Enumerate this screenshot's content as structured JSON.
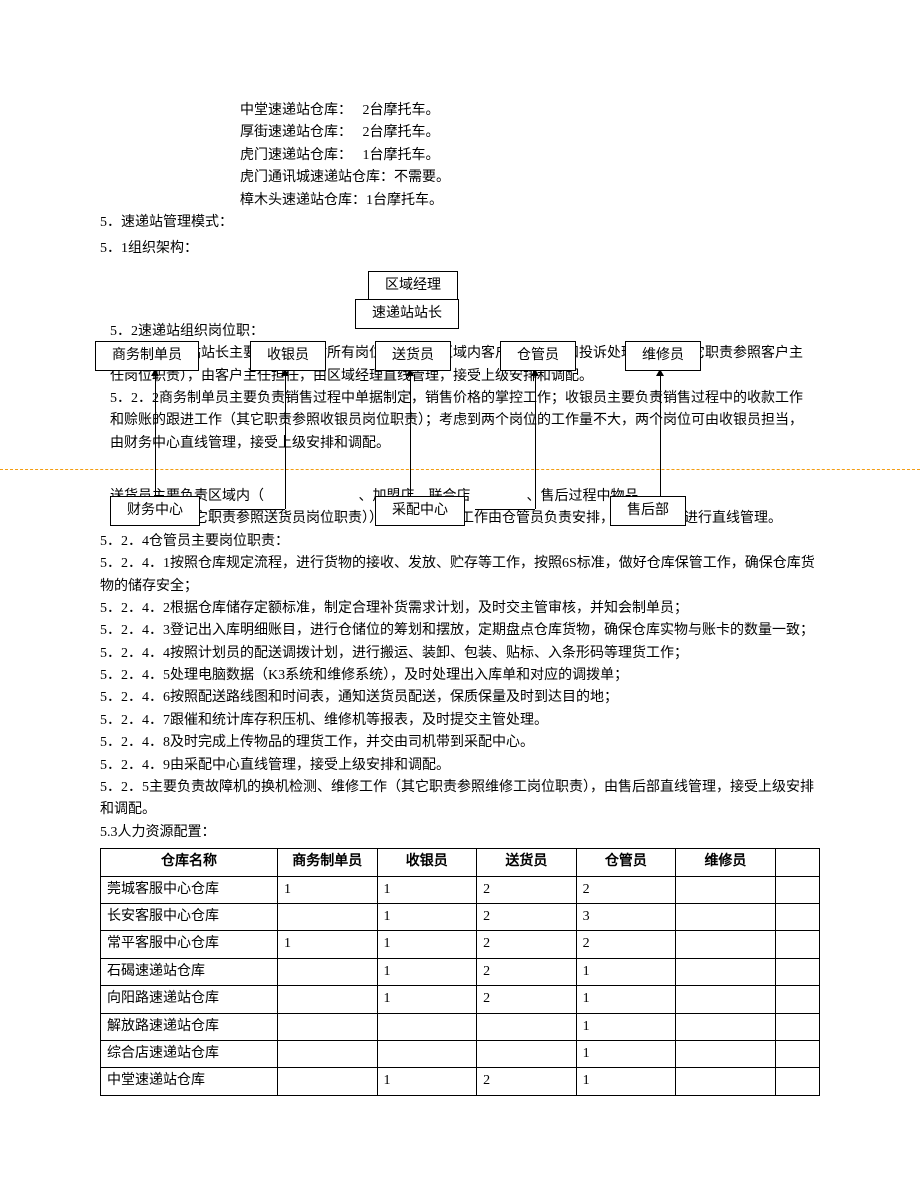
{
  "warehouse_list": [
    {
      "name": "中堂速递站仓库：",
      "qty": "2台摩托车。"
    },
    {
      "name": "厚街速递站仓库：",
      "qty": "2台摩托车。"
    },
    {
      "name": "虎门速递站仓库：",
      "qty": "1台摩托车。"
    },
    {
      "name": "虎门通讯城速递站仓库：不需要。",
      "qty": ""
    },
    {
      "name": "樟木头速递站仓库：1台摩托车。",
      "qty": ""
    }
  ],
  "sec5_title": "5．速递站管理模式：",
  "sec51_title": "5．1组织架构：",
  "org": {
    "manager": "区域经理",
    "station_head": "速递站站长",
    "roles": [
      "商务制单员",
      "收银员",
      "送货员",
      "仓管员",
      "维修员"
    ],
    "depts": [
      "财务中心",
      "采配中心",
      "售后部"
    ]
  },
  "sec52_title": "5．2速递站组织岗位职：",
  "p521": "5．2．1速递站站长主要负责速递站所有岗位的管理、区域内客户维护工作和投诉处理工作（其它职责参照客户主任岗位职责），由客户主任担任，由区域经理直线管理，接受上级安排和调配。",
  "p522": "5．2．2商务制单员主要负责销售过程中单据制定，销售价格的掌控工作；收银员主要负责销售过程中的收款工作和赊账的跟进工作（其它职责参照收银员岗位职责）；考虑到两个岗位的工作量不大，两个岗位可由收银员担当，由财务中心直线管理，接受上级安排和调配。",
  "p523a": "送货员主要负责区域内（",
  "p523b": "、加盟店、联合店",
  "p523c": "、售后过程中物品",
  "p523d": "送递工作（其它职责参照送货员岗位职责）），日常的配送工作由仓管员负责安排，由采配中心进行直线管理。",
  "p524": "5．2．4仓管员主要岗位职责：",
  "p5241": "5．2．4．1按照仓库规定流程，进行货物的接收、发放、贮存等工作，按照6S标准，做好仓库保管工作，确保仓库货物的储存安全；",
  "p5242": "5．2．4．2根据仓库储存定额标准，制定合理补货需求计划，及时交主管审核，并知会制单员；",
  "p5243": "5．2．4．3登记出入库明细账目，进行仓储位的筹划和摆放，定期盘点仓库货物，确保仓库实物与账卡的数量一致；",
  "p5244": "5．2．4．4按照计划员的配送调拨计划，进行搬运、装卸、包装、贴标、入条形码等理货工作；",
  "p5245": "5．2．4．5处理电脑数据（K3系统和维修系统），及时处理出入库单和对应的调拨单；",
  "p5246": "5．2．4．6按照配送路线图和时间表，通知送货员配送，保质保量及时到达目的地；",
  "p5247": "5．2．4．7跟催和统计库存积压机、维修机等报表，及时提交主管处理。",
  "p5248": "5．2．4．8及时完成上传物品的理货工作，并交由司机带到采配中心。",
  "p5249": "5．2．4．9由采配中心直线管理，接受上级安排和调配。",
  "p525": "5．2．5主要负责故障机的换机检测、维修工作（其它职责参照维修工岗位职责），由售后部直线管理，接受上级安排和调配。",
  "sec53_title": "5.3人力资源配置：",
  "table": {
    "headers": [
      "仓库名称",
      "商务制单员",
      "收银员",
      "送货员",
      "仓管员",
      "维修员",
      ""
    ],
    "rows": [
      [
        "莞城客服中心仓库",
        "1",
        "1",
        "2",
        "2",
        "",
        ""
      ],
      [
        "长安客服中心仓库",
        "",
        "1",
        "2",
        "3",
        "",
        ""
      ],
      [
        "常平客服中心仓库",
        "1",
        "1",
        "2",
        "2",
        "",
        ""
      ],
      [
        "石碣速递站仓库",
        "",
        "1",
        "2",
        "1",
        "",
        ""
      ],
      [
        "向阳路速递站仓库",
        "",
        "1",
        "2",
        "1",
        "",
        ""
      ],
      [
        "解放路速递站仓库",
        "",
        "",
        "",
        "1",
        "",
        ""
      ],
      [
        "综合店速递站仓库",
        "",
        "",
        "",
        "1",
        "",
        ""
      ],
      [
        "中堂速递站仓库",
        "",
        "1",
        "2",
        "1",
        "",
        ""
      ]
    ]
  }
}
